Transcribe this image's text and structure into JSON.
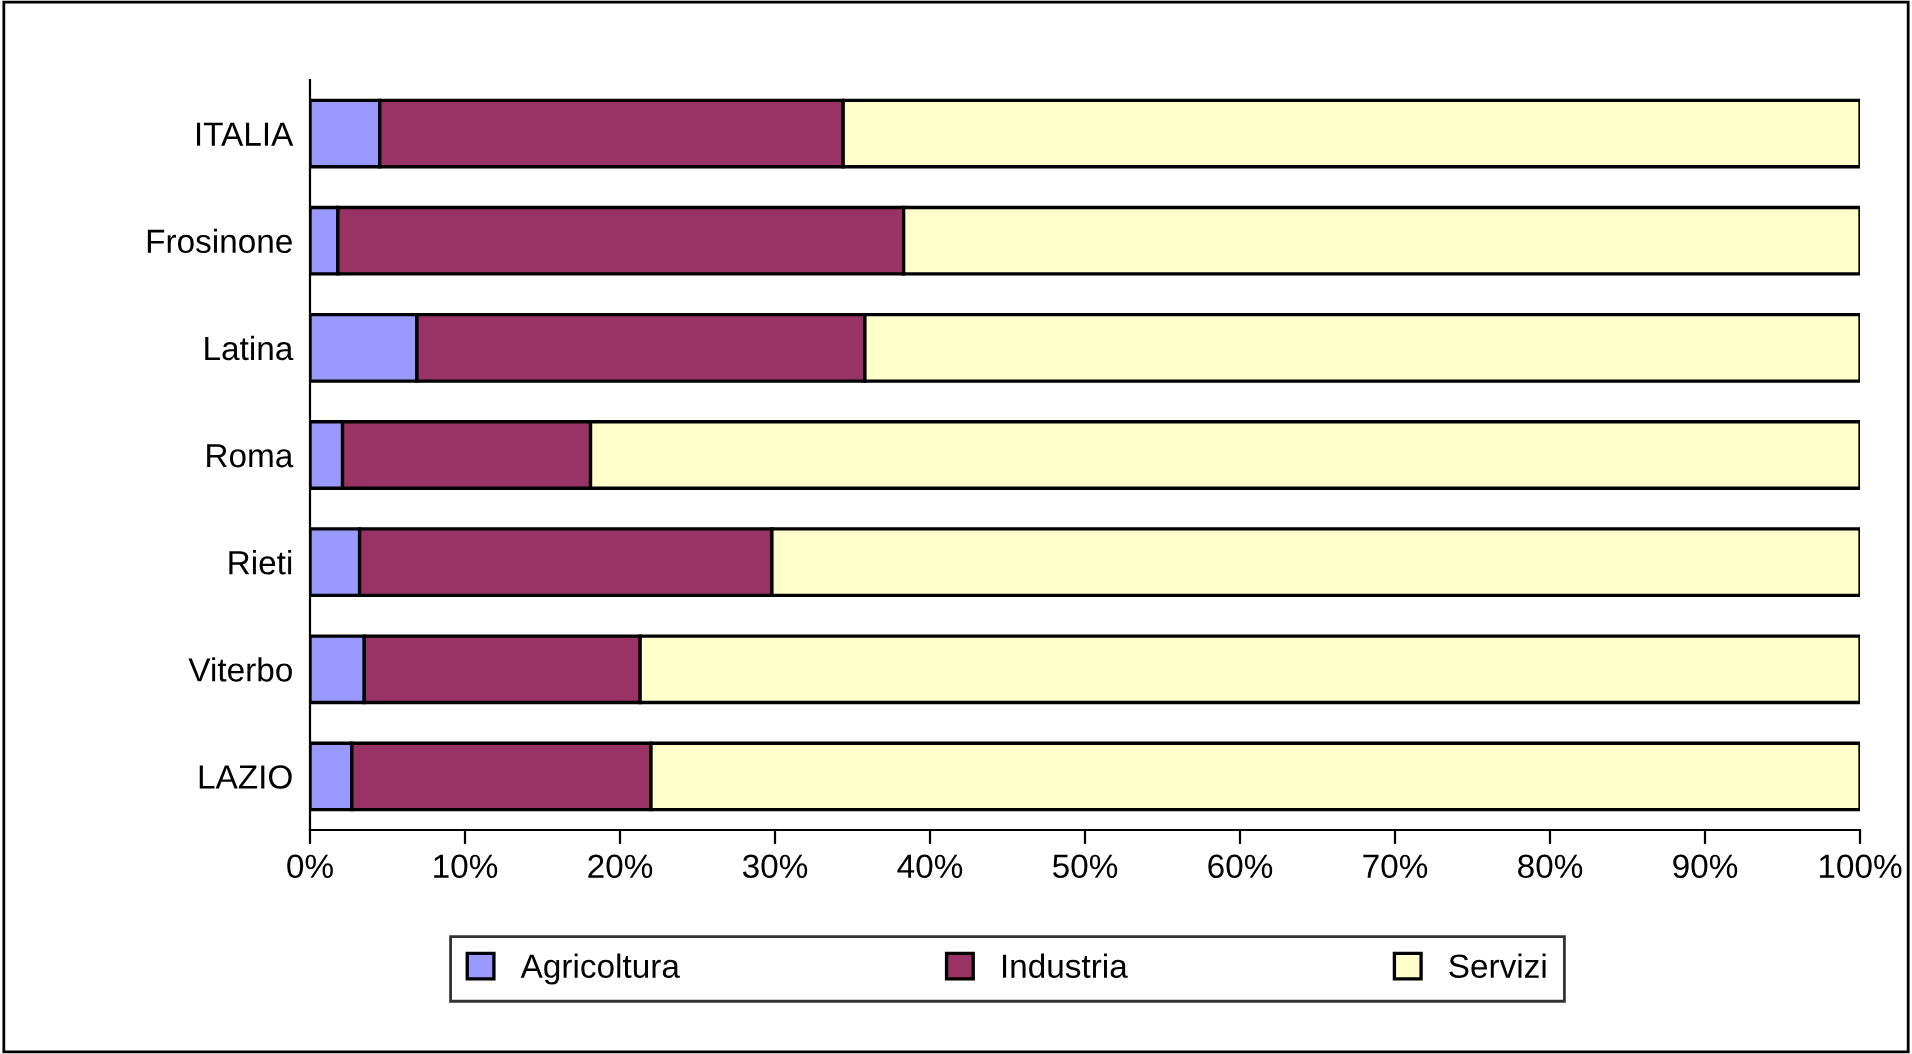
{
  "chart_data": {
    "type": "bar",
    "orientation": "horizontal",
    "stacked": true,
    "categories": [
      "ITALIA",
      "Frosinone",
      "Latina",
      "Roma",
      "Rieti",
      "Viterbo",
      "LAZIO"
    ],
    "series": [
      {
        "name": "Agricoltura",
        "color": "#9999ff",
        "values": [
          4.5,
          1.8,
          6.9,
          2.1,
          3.2,
          3.5,
          2.7
        ]
      },
      {
        "name": "Industria",
        "color": "#993366",
        "values": [
          29.9,
          36.5,
          28.9,
          16.0,
          26.6,
          17.8,
          19.3
        ]
      },
      {
        "name": "Servizi",
        "color": "#ffffcc",
        "values": [
          65.6,
          61.7,
          64.2,
          81.9,
          70.2,
          78.7,
          78.0
        ]
      }
    ],
    "xlim": [
      0,
      100
    ],
    "xticks": [
      {
        "value": 0,
        "label": "0%"
      },
      {
        "value": 10,
        "label": "10%"
      },
      {
        "value": 20,
        "label": "20%"
      },
      {
        "value": 30,
        "label": "30%"
      },
      {
        "value": 40,
        "label": "40%"
      },
      {
        "value": 50,
        "label": "50%"
      },
      {
        "value": 60,
        "label": "60%"
      },
      {
        "value": 70,
        "label": "70%"
      },
      {
        "value": 80,
        "label": "80%"
      },
      {
        "value": 90,
        "label": "90%"
      },
      {
        "value": 100,
        "label": "100%"
      }
    ],
    "legend": "bottom",
    "grid": false
  }
}
